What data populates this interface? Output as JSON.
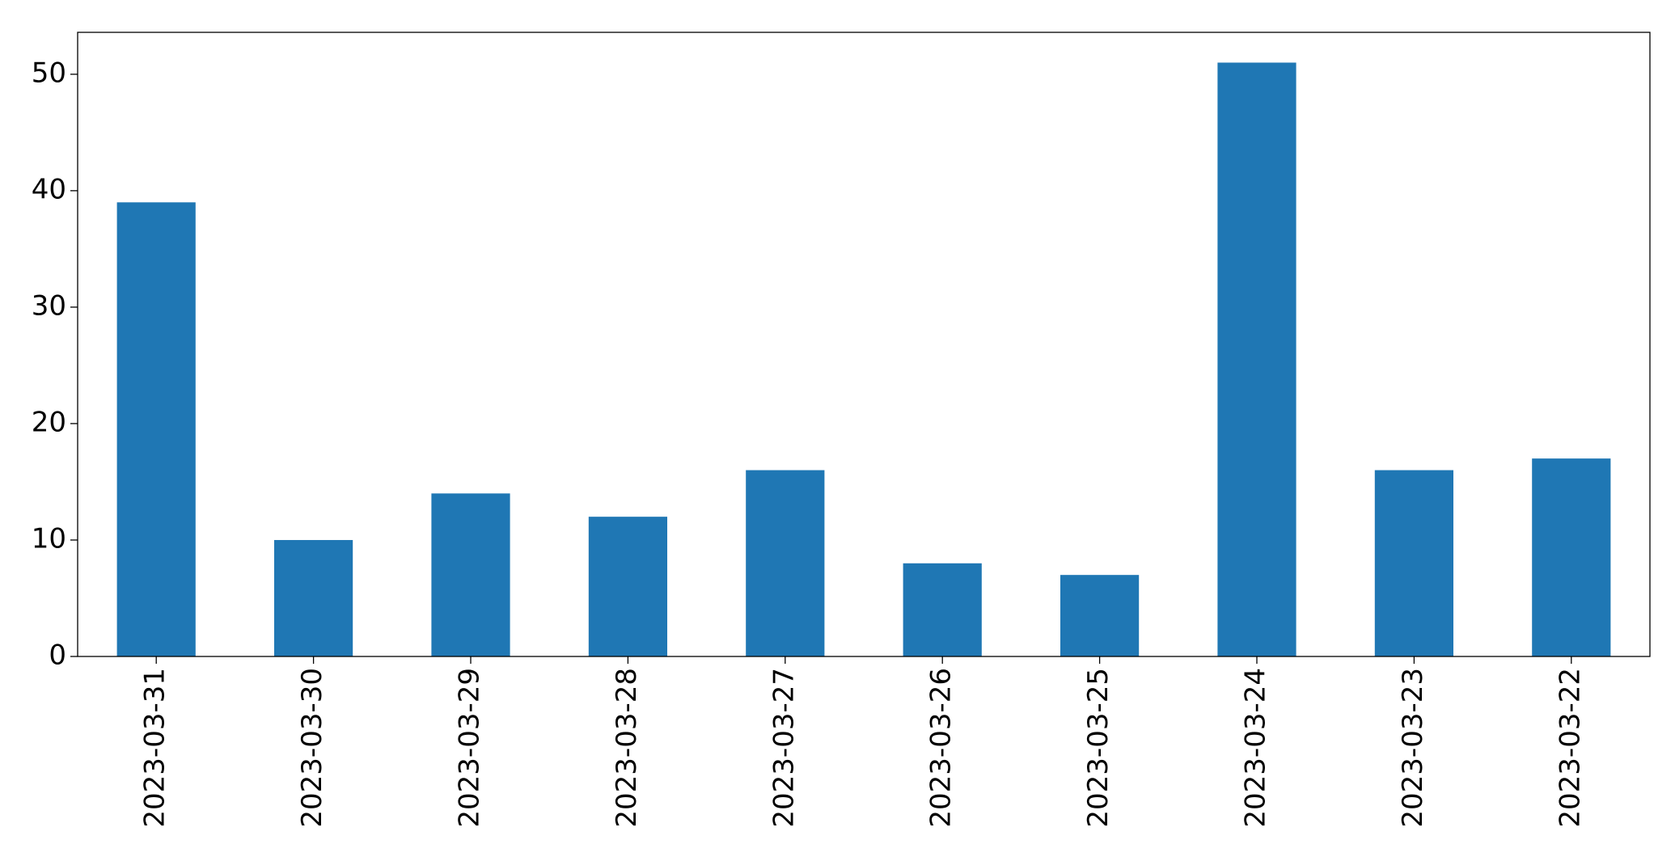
{
  "chart_data": {
    "type": "bar",
    "categories": [
      "2023-03-31",
      "2023-03-30",
      "2023-03-29",
      "2023-03-28",
      "2023-03-27",
      "2023-03-26",
      "2023-03-25",
      "2023-03-24",
      "2023-03-23",
      "2023-03-22"
    ],
    "values": [
      39,
      10,
      14,
      12,
      16,
      8,
      7,
      51,
      16,
      17
    ],
    "color": "#1f77b4",
    "ylim": [
      0,
      53.6
    ],
    "yticks": [
      0,
      10,
      20,
      30,
      40,
      50
    ],
    "grid": false
  }
}
